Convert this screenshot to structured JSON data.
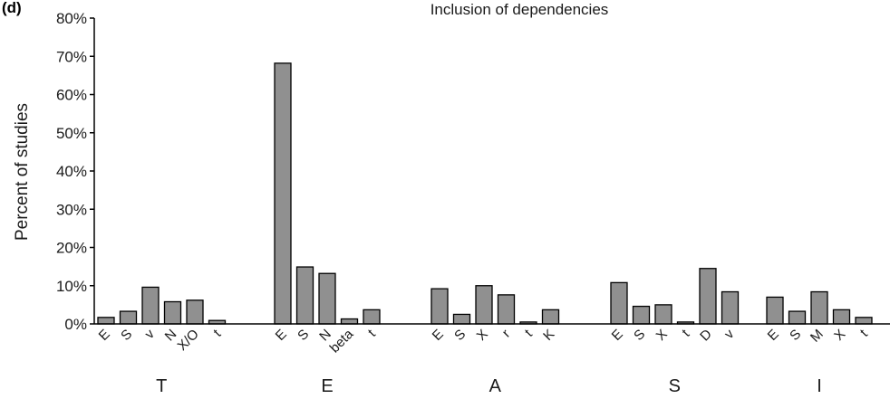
{
  "chart_data": {
    "type": "bar",
    "panel_label": "(d)",
    "title": "Inclusion of dependencies",
    "ylabel": "Percent of studies",
    "xlabel": "",
    "ylim": [
      0,
      80
    ],
    "y_ticks": [
      "0%",
      "10%",
      "20%",
      "30%",
      "40%",
      "50%",
      "60%",
      "70%",
      "80%"
    ],
    "bar_color": "#909090",
    "grid": false,
    "groups": [
      {
        "name": "T",
        "categories": [
          "E",
          "S",
          "v",
          "N",
          "X/O",
          "t"
        ],
        "values": [
          1.7,
          3.3,
          9.6,
          5.8,
          6.2,
          0.9
        ]
      },
      {
        "name": "E",
        "categories": [
          "E",
          "S",
          "N",
          "beta",
          "t"
        ],
        "values": [
          68.2,
          14.9,
          13.2,
          1.3,
          3.7
        ]
      },
      {
        "name": "A",
        "categories": [
          "E",
          "S",
          "X",
          "r",
          "t",
          "K"
        ],
        "values": [
          9.2,
          2.5,
          10.0,
          7.6,
          0.5,
          3.7
        ]
      },
      {
        "name": "S",
        "categories": [
          "E",
          "S",
          "X",
          "t",
          "D",
          "v"
        ],
        "values": [
          10.8,
          4.6,
          5.0,
          0.5,
          14.5,
          8.4
        ]
      },
      {
        "name": "I",
        "categories": [
          "E",
          "S",
          "M",
          "X",
          "t"
        ],
        "values": [
          7.0,
          3.3,
          8.4,
          3.7,
          1.7
        ]
      }
    ]
  }
}
